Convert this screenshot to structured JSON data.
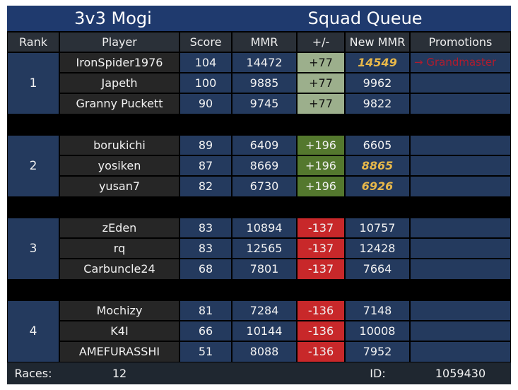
{
  "header": {
    "title_left": "3v3 Mogi",
    "title_right": "Squad Queue"
  },
  "columns": [
    "Rank",
    "Player",
    "Score",
    "MMR",
    "+/-",
    "New MMR",
    "Promotions"
  ],
  "teams": [
    {
      "rank": "1",
      "players": [
        {
          "name": "IronSpider1976",
          "score": "104",
          "mmr": "14472",
          "delta": "+77",
          "new_mmr": "14549",
          "promoted": true,
          "promotion": "→ Grandmaster"
        },
        {
          "name": "Japeth",
          "score": "100",
          "mmr": "9885",
          "delta": "+77",
          "new_mmr": "9962",
          "promoted": false,
          "promotion": ""
        },
        {
          "name": "Granny Puckett",
          "score": "90",
          "mmr": "9745",
          "delta": "+77",
          "new_mmr": "9822",
          "promoted": false,
          "promotion": ""
        }
      ]
    },
    {
      "rank": "2",
      "players": [
        {
          "name": "borukichi",
          "score": "89",
          "mmr": "6409",
          "delta": "+196",
          "new_mmr": "6605",
          "promoted": false,
          "promotion": ""
        },
        {
          "name": "yosiken",
          "score": "87",
          "mmr": "8669",
          "delta": "+196",
          "new_mmr": "8865",
          "promoted": true,
          "promotion": ""
        },
        {
          "name": "yusan7",
          "score": "82",
          "mmr": "6730",
          "delta": "+196",
          "new_mmr": "6926",
          "promoted": true,
          "promotion": ""
        }
      ]
    },
    {
      "rank": "3",
      "players": [
        {
          "name": "zEden",
          "score": "83",
          "mmr": "10894",
          "delta": "-137",
          "new_mmr": "10757",
          "promoted": false,
          "promotion": ""
        },
        {
          "name": "rq",
          "score": "83",
          "mmr": "12565",
          "delta": "-137",
          "new_mmr": "12428",
          "promoted": false,
          "promotion": ""
        },
        {
          "name": "Carbuncle24",
          "score": "68",
          "mmr": "7801",
          "delta": "-137",
          "new_mmr": "7664",
          "promoted": false,
          "promotion": ""
        }
      ]
    },
    {
      "rank": "4",
      "players": [
        {
          "name": "Mochizy",
          "score": "81",
          "mmr": "7284",
          "delta": "-136",
          "new_mmr": "7148",
          "promoted": false,
          "promotion": ""
        },
        {
          "name": "K4I",
          "score": "66",
          "mmr": "10144",
          "delta": "-136",
          "new_mmr": "10008",
          "promoted": false,
          "promotion": ""
        },
        {
          "name": "AMEFURASSHI",
          "score": "51",
          "mmr": "8088",
          "delta": "-136",
          "new_mmr": "7952",
          "promoted": false,
          "promotion": ""
        }
      ]
    }
  ],
  "footer": {
    "races_label": "Races:",
    "races_value": "12",
    "id_label": "ID:",
    "id_value": "1059430"
  },
  "colors": {
    "title_bg": "#1f3a6e",
    "row_blue": "#243a5e",
    "player_bg": "#262626",
    "gain_small": "#9caf8c",
    "gain_big": "#54782e",
    "loss": "#c8282a",
    "promotion_text": "#e8b84a",
    "promotion_note": "#b01c2e"
  }
}
